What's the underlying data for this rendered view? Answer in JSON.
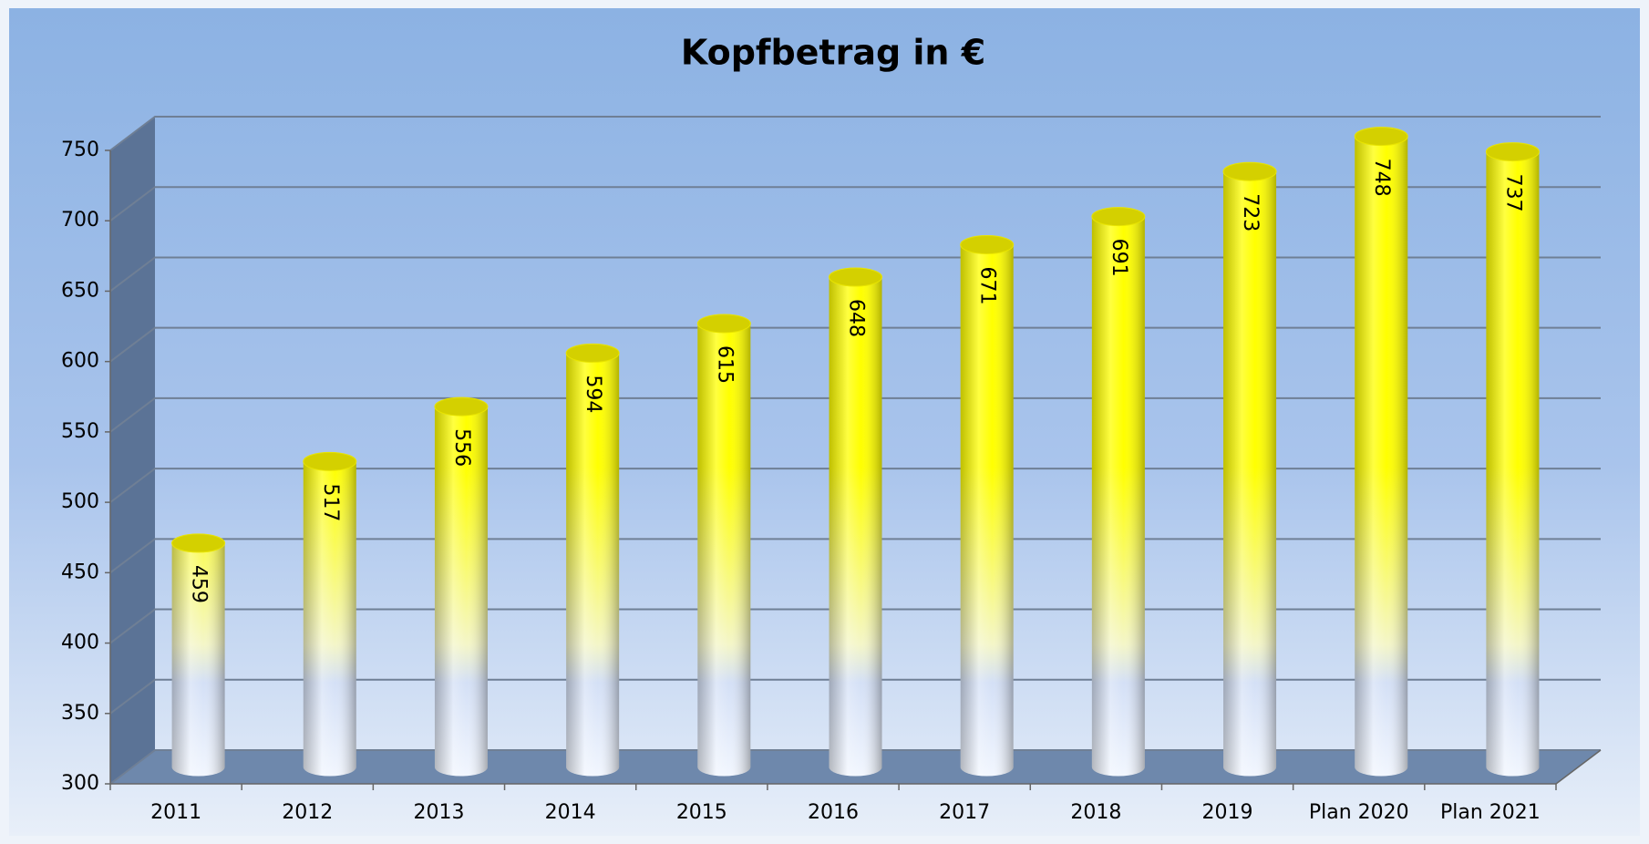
{
  "chart_data": {
    "type": "bar",
    "title": "Kopfbetrag in €",
    "categories": [
      "2011",
      "2012",
      "2013",
      "2014",
      "2015",
      "2016",
      "2017",
      "2018",
      "2019",
      "Plan 2020",
      "Plan 2021"
    ],
    "values": [
      459,
      517,
      556,
      594,
      615,
      648,
      671,
      691,
      723,
      748,
      737
    ],
    "color": "#ffff00",
    "ylim": [
      300,
      750
    ],
    "yticks": [
      300,
      350,
      400,
      450,
      500,
      550,
      600,
      650,
      700,
      750
    ],
    "grid": true
  }
}
